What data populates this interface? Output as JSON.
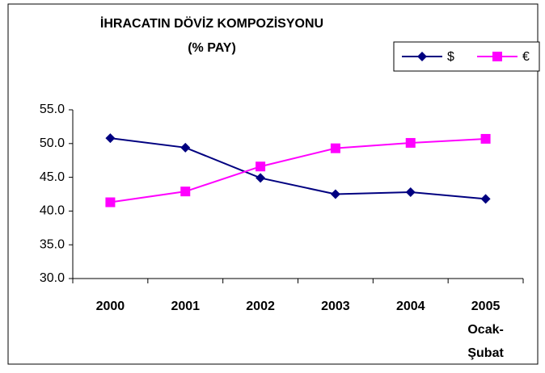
{
  "chart_data": {
    "type": "line",
    "title": "İHRACATIN DÖVİZ KOMPOZİSYONU",
    "subtitle": "(% PAY)",
    "categories": [
      "2000",
      "2001",
      "2002",
      "2003",
      "2004",
      "2005\nOcak-\nŞubat"
    ],
    "series": [
      {
        "name": "$",
        "color": "#000080",
        "marker": "diamond",
        "values": [
          50.8,
          49.4,
          44.9,
          42.5,
          42.8,
          41.8
        ]
      },
      {
        "name": "€",
        "color": "#ff00ff",
        "marker": "square",
        "values": [
          41.3,
          42.9,
          46.6,
          49.3,
          50.1,
          50.7
        ]
      }
    ],
    "ylim": [
      30,
      55
    ],
    "yticks": [
      {
        "value": 30,
        "label": "30.0"
      },
      {
        "value": 35,
        "label": "35.0"
      },
      {
        "value": 40,
        "label": "40.0"
      },
      {
        "value": 45,
        "label": "45.0"
      },
      {
        "value": 50,
        "label": "50.0"
      },
      {
        "value": 55,
        "label": "55.0"
      }
    ],
    "grid": false,
    "legend": "top-right"
  }
}
